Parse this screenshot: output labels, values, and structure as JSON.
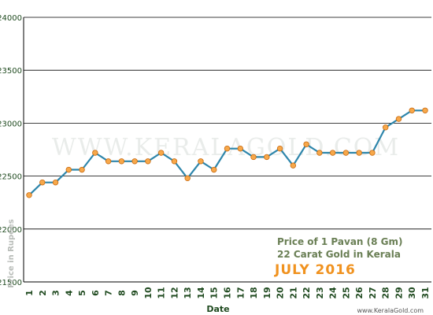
{
  "chart_data": {
    "type": "line",
    "xlabel": "Date",
    "ylabel": "Price in Rupees",
    "ylim": [
      21500,
      24000
    ],
    "yticks": [
      21500,
      22000,
      22500,
      23000,
      23500,
      24000
    ],
    "x": [
      1,
      2,
      3,
      4,
      5,
      6,
      7,
      8,
      9,
      10,
      11,
      12,
      13,
      14,
      15,
      16,
      17,
      18,
      19,
      20,
      21,
      22,
      23,
      24,
      25,
      26,
      27,
      28,
      29,
      30,
      31
    ],
    "series": [
      {
        "values": [
          22320,
          22440,
          22440,
          22560,
          22560,
          22720,
          22640,
          22640,
          22640,
          22640,
          22720,
          22640,
          22480,
          22640,
          22560,
          22760,
          22760,
          22680,
          22680,
          22760,
          22600,
          22800,
          22720,
          22720,
          22720,
          22720,
          22720,
          22960,
          23040,
          23120,
          23120
        ]
      }
    ],
    "grid": "horizontal",
    "caption": {
      "line1": "Price of 1 Pavan (8 Gm)",
      "line2": "22 Carat Gold in Kerala",
      "line3": "JULY 2016"
    },
    "watermark": "WWW.KERALAGOLD.COM",
    "source_url": "www.KeralaGold.com",
    "colors": {
      "line": "#2e86ab",
      "marker_fill": "#f7a84a",
      "marker_stroke": "#c86a10",
      "grid": "#000000",
      "caption_accent": "#f0921f",
      "caption_text": "#6a7f55"
    }
  }
}
